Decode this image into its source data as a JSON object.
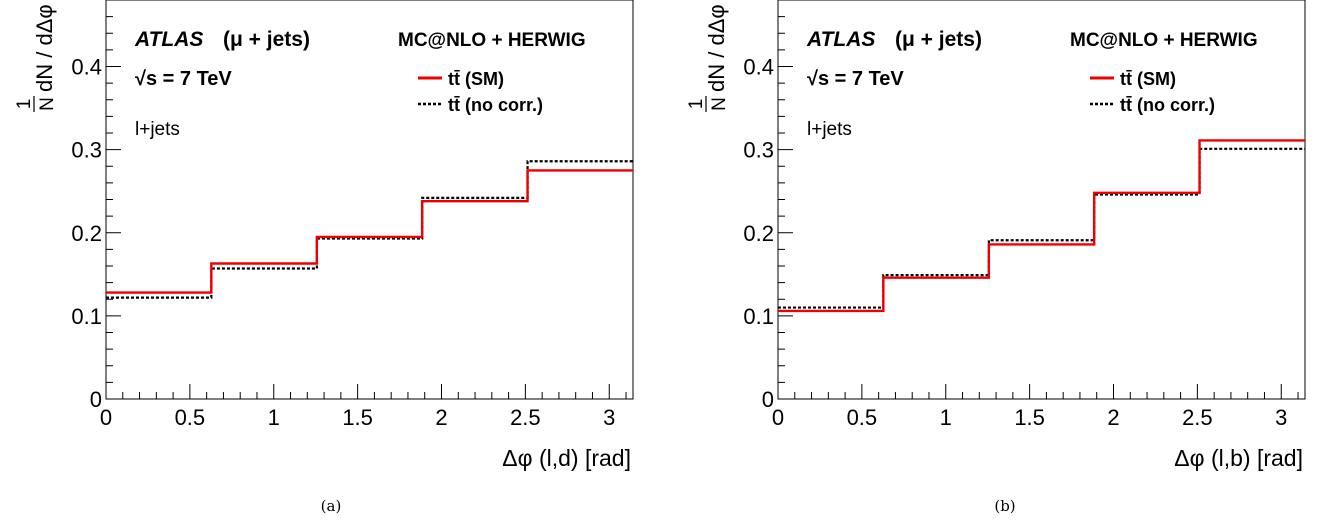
{
  "chart_data": [
    {
      "type": "step",
      "panel_label": "(a)",
      "xlabel": "Δφ (l,d) [rad]",
      "ylabel_num": "1",
      "ylabel_den": "N",
      "ylabel_rest": "dN / dΔφ",
      "xlim": [
        0,
        3.1416
      ],
      "ylim": [
        0,
        0.48
      ],
      "x_ticks": [
        0,
        0.5,
        1,
        1.5,
        2,
        2.5,
        3
      ],
      "x_tick_labels": [
        "0",
        "0.5",
        "1",
        "1.5",
        "2",
        "2.5",
        "3"
      ],
      "y_ticks": [
        0,
        0.1,
        0.2,
        0.3,
        0.4
      ],
      "y_tick_labels": [
        "0",
        "0.1",
        "0.2",
        "0.3",
        "0.4"
      ],
      "bin_edges": [
        0,
        0.628,
        1.257,
        1.885,
        2.513,
        3.1416
      ],
      "series": [
        {
          "name": "tt̄ (SM)",
          "color": "#ee0000",
          "dash": "solid",
          "values": [
            0.128,
            0.163,
            0.195,
            0.238,
            0.275
          ]
        },
        {
          "name": "tt̄ (no corr.)",
          "color": "#000000",
          "dash": "dotted",
          "values": [
            0.122,
            0.157,
            0.193,
            0.242,
            0.286
          ]
        }
      ],
      "annotations": {
        "atlas": "ATLAS",
        "channel": "(μ + jets)",
        "energy": "√s = 7 TeV",
        "selection": "l+jets",
        "generator": "MC@NLO + HERWIG"
      }
    },
    {
      "type": "step",
      "panel_label": "(b)",
      "xlabel": "Δφ (l,b) [rad]",
      "ylabel_num": "1",
      "ylabel_den": "N",
      "ylabel_rest": "dN / dΔφ",
      "xlim": [
        0,
        3.1416
      ],
      "ylim": [
        0,
        0.48
      ],
      "x_ticks": [
        0,
        0.5,
        1,
        1.5,
        2,
        2.5,
        3
      ],
      "x_tick_labels": [
        "0",
        "0.5",
        "1",
        "1.5",
        "2",
        "2.5",
        "3"
      ],
      "y_ticks": [
        0,
        0.1,
        0.2,
        0.3,
        0.4
      ],
      "y_tick_labels": [
        "0",
        "0.1",
        "0.2",
        "0.3",
        "0.4"
      ],
      "bin_edges": [
        0,
        0.628,
        1.257,
        1.885,
        2.513,
        3.1416
      ],
      "series": [
        {
          "name": "tt̄ (SM)",
          "color": "#ee0000",
          "dash": "solid",
          "values": [
            0.106,
            0.146,
            0.186,
            0.248,
            0.311
          ]
        },
        {
          "name": "tt̄ (no corr.)",
          "color": "#000000",
          "dash": "dotted",
          "values": [
            0.11,
            0.149,
            0.191,
            0.246,
            0.301
          ]
        }
      ],
      "annotations": {
        "atlas": "ATLAS",
        "channel": "(μ + jets)",
        "energy": "√s = 7 TeV",
        "selection": "l+jets",
        "generator": "MC@NLO + HERWIG"
      }
    }
  ]
}
